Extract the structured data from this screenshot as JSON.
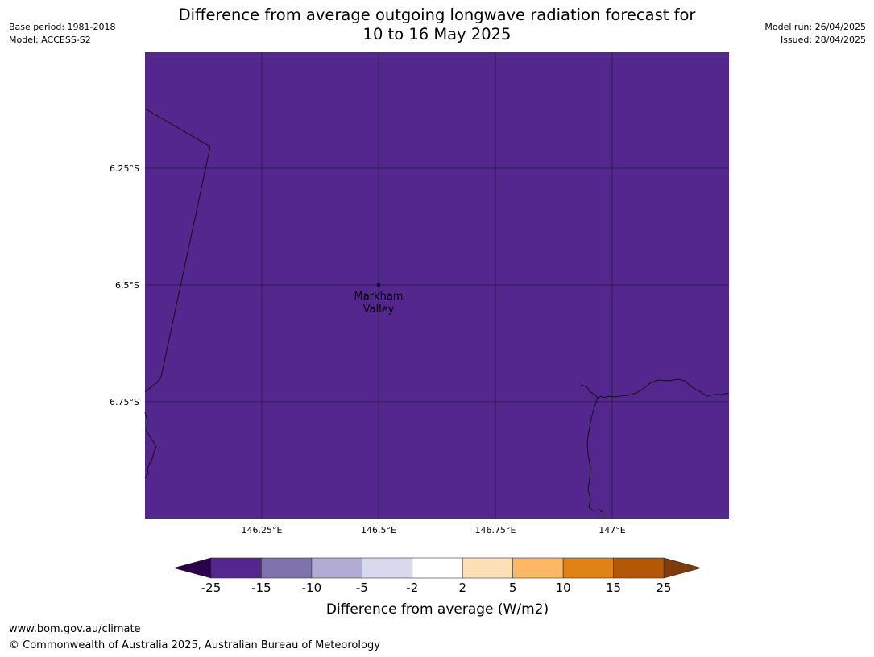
{
  "header": {
    "title_line1": "Difference from average outgoing longwave radiation forecast for",
    "title_line2": "10 to 16 May 2025",
    "base_period": "Base period: 1981-2018",
    "model": "Model: ACCESS-S2",
    "model_run": "Model run: 26/04/2025",
    "issued": "Issued: 28/04/2025"
  },
  "map": {
    "fill_color": "#54278f",
    "lat_labels": [
      "6.25°S",
      "6.5°S",
      "6.75°S"
    ],
    "lon_labels": [
      "146.25°E",
      "146.5°E",
      "146.75°E",
      "147°E"
    ],
    "place": {
      "name_line1": "Markham",
      "name_line2": "Valley"
    }
  },
  "legend": {
    "title": "Difference from average (W/m2)",
    "ticks": [
      "-25",
      "-15",
      "-10",
      "-5",
      "-2",
      "2",
      "5",
      "10",
      "15",
      "25"
    ],
    "colors": [
      "#54278f",
      "#8073ac",
      "#b2abd2",
      "#d8daeb",
      "#ffffff",
      "#fee0b6",
      "#fdb863",
      "#e08214",
      "#b35806"
    ],
    "under_color": "#2d004b",
    "over_color": "#7f3b08"
  },
  "footer": {
    "url": "www.bom.gov.au/climate",
    "copyright": "© Commonwealth of Australia 2025, Australian Bureau of Meteorology"
  }
}
